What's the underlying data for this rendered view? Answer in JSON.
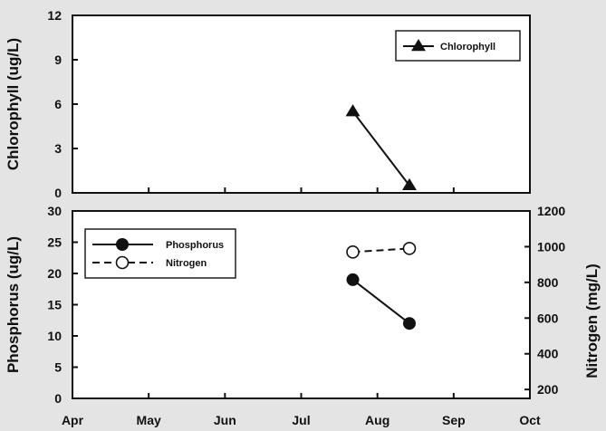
{
  "chart_data": [
    {
      "type": "line",
      "ylabel": "Chlorophyll (ug/L)",
      "ylim": [
        0,
        12
      ],
      "yticks": [
        0,
        3,
        6,
        9,
        12
      ],
      "xlim": [
        "Apr",
        "Oct"
      ],
      "months": [
        "Apr",
        "May",
        "Jun",
        "Jul",
        "Aug",
        "Sep",
        "Oct"
      ],
      "legend_position": "top-right",
      "series": [
        {
          "name": "Chlorophyll",
          "marker": "filled-triangle",
          "line": "solid",
          "color": "#111111",
          "points": [
            {
              "x": "Jul 22",
              "y": 5.5
            },
            {
              "x": "Aug 14",
              "y": 0.5
            }
          ]
        }
      ]
    },
    {
      "type": "line",
      "ylabel": "Phosphorus (ug/L)",
      "ylabel_right": "Nitrogen (mg/L)",
      "ylim": [
        0,
        30
      ],
      "yticks": [
        0,
        5,
        10,
        15,
        20,
        25,
        30
      ],
      "ylim_right": [
        150,
        1200
      ],
      "yticks_right": [
        200,
        400,
        600,
        800,
        1000,
        1200
      ],
      "xlim": [
        "Apr",
        "Oct"
      ],
      "months": [
        "Apr",
        "May",
        "Jun",
        "Jul",
        "Aug",
        "Sep",
        "Oct"
      ],
      "legend_position": "top-left",
      "series": [
        {
          "name": "Phosphorus",
          "axis": "left",
          "marker": "filled-circle",
          "line": "solid",
          "color": "#111111",
          "points": [
            {
              "x": "Jul 22",
              "y": 19
            },
            {
              "x": "Aug 14",
              "y": 12
            }
          ]
        },
        {
          "name": "Nitrogen",
          "axis": "right",
          "marker": "open-circle",
          "line": "dashed",
          "color": "#111111",
          "points": [
            {
              "x": "Jul 22",
              "y": 970
            },
            {
              "x": "Aug 14",
              "y": 990
            }
          ]
        }
      ]
    }
  ]
}
